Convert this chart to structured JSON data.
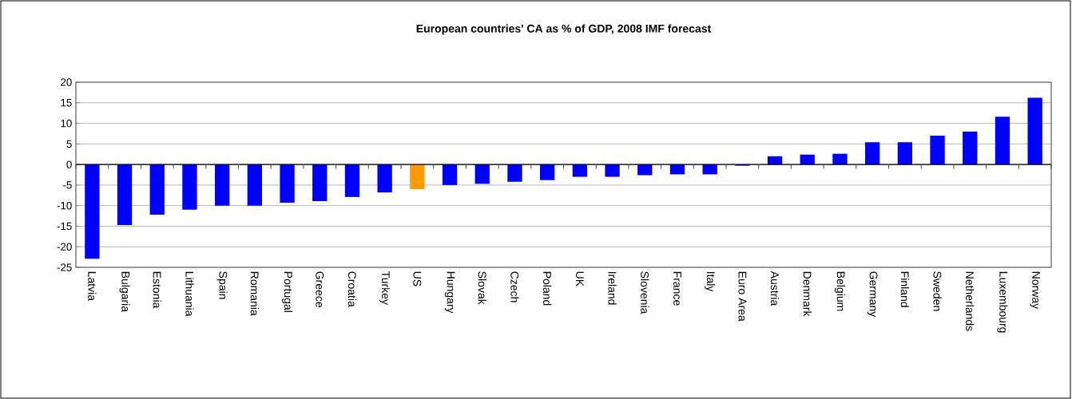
{
  "chart_data": {
    "type": "bar",
    "title": "European countries' CA as % of GDP, 2008 IMF forecast",
    "categories": [
      "Latvia",
      "Bulgaria",
      "Estonia",
      "Lithuania",
      "Spain",
      "Romania",
      "Portugal",
      "Greece",
      "Croatia",
      "Turkey",
      "US",
      "Hungary",
      "Slovak",
      "Czech",
      "Poland",
      "UK",
      "Ireland",
      "Slovenia",
      "France",
      "Italy",
      "Euro Area",
      "Austria",
      "Denmark",
      "Belgium",
      "Germany",
      "Finland",
      "Sweden",
      "Netherlands",
      "Luxembourg",
      "Norway"
    ],
    "values": [
      -22.9,
      -14.7,
      -12.2,
      -11.0,
      -10.0,
      -10.0,
      -9.3,
      -8.9,
      -7.9,
      -6.8,
      -6.0,
      -5.0,
      -4.7,
      -4.2,
      -3.8,
      -3.0,
      -3.0,
      -2.6,
      -2.4,
      -2.4,
      -0.3,
      2.0,
      2.4,
      2.6,
      5.4,
      5.4,
      7.0,
      8.0,
      11.6,
      16.2
    ],
    "colors": [
      "#0000ff",
      "#0000ff",
      "#0000ff",
      "#0000ff",
      "#0000ff",
      "#0000ff",
      "#0000ff",
      "#0000ff",
      "#0000ff",
      "#0000ff",
      "#ff9900",
      "#0000ff",
      "#0000ff",
      "#0000ff",
      "#0000ff",
      "#0000ff",
      "#0000ff",
      "#0000ff",
      "#0000ff",
      "#0000ff",
      "#0000ff",
      "#0000ff",
      "#0000ff",
      "#0000ff",
      "#0000ff",
      "#0000ff",
      "#0000ff",
      "#0000ff",
      "#0000ff",
      "#0000ff"
    ],
    "ylim": [
      -25,
      20
    ],
    "yticks": [
      -25,
      -20,
      -15,
      -10,
      -5,
      0,
      5,
      10,
      15,
      20
    ],
    "grid": "y"
  }
}
